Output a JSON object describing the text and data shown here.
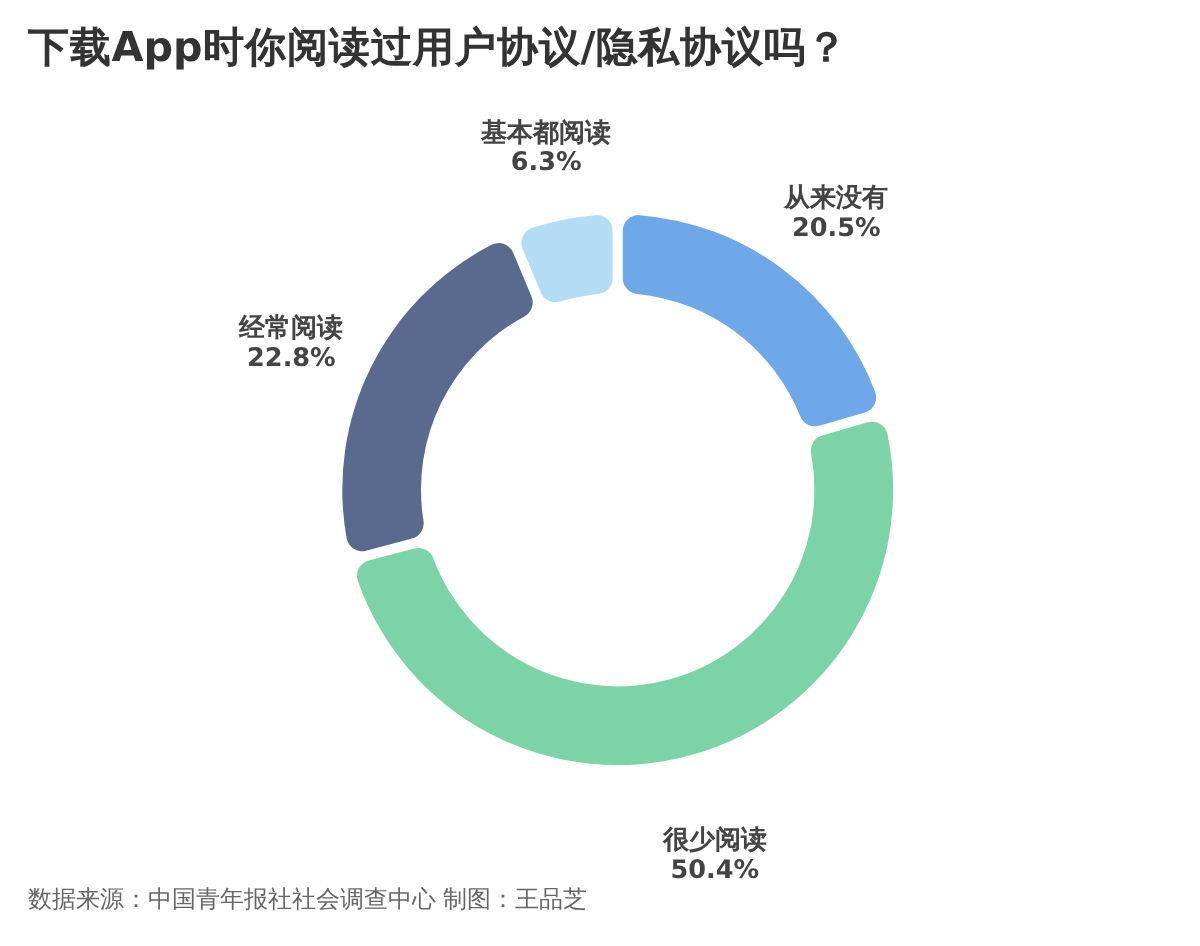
{
  "chart_data": {
    "type": "donut",
    "title": "下载App时你阅读过用户协议/隐私协议吗？",
    "categories": [
      "从来没有",
      "很少阅读",
      "经常阅读",
      "基本都阅读"
    ],
    "values": [
      20.5,
      50.4,
      22.8,
      6.3
    ],
    "colors": [
      "#6fa8e8",
      "#7dd3a8",
      "#5a6a8e",
      "#b3dcf5"
    ],
    "value_labels": [
      "20.5%",
      "50.4%",
      "22.8%",
      "6.3%"
    ],
    "annotations": [
      "数据来源：中国青年报社社会调查中心 制图：王品芝"
    ],
    "legend": false
  }
}
